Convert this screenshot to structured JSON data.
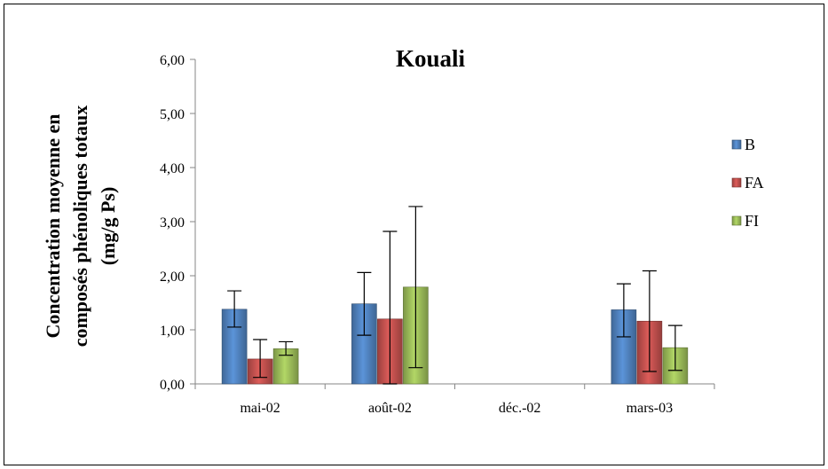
{
  "chart_data": {
    "type": "bar",
    "title": "Kouali",
    "xlabel": "",
    "ylabel": {
      "lines": [
        "Concentration moyenne en",
        "composés phénoliques totaux",
        "(mg/g Ps)"
      ]
    },
    "categories": [
      "mai-02",
      "août-02",
      "déc.-02",
      "mars-03"
    ],
    "ylim": [
      0,
      6
    ],
    "yticks": [
      "0,00",
      "1,00",
      "2,00",
      "3,00",
      "4,00",
      "5,00",
      "6,00"
    ],
    "ytick_values": [
      0,
      1,
      2,
      3,
      4,
      5,
      6
    ],
    "grid": false,
    "legend_position": "right",
    "series": [
      {
        "name": "B",
        "color": "#4F81BD",
        "values": [
          1.38,
          1.48,
          null,
          1.37
        ],
        "err_low": [
          1.05,
          0.9,
          null,
          0.87
        ],
        "err_high": [
          1.72,
          2.06,
          null,
          1.85
        ]
      },
      {
        "name": "FA",
        "color": "#C0504D",
        "values": [
          0.46,
          1.2,
          null,
          1.16
        ],
        "err_low": [
          0.12,
          0.0,
          null,
          0.23
        ],
        "err_high": [
          0.82,
          2.82,
          null,
          2.09
        ]
      },
      {
        "name": "FI",
        "color": "#9BBB59",
        "values": [
          0.65,
          1.79,
          null,
          0.67
        ],
        "err_low": [
          0.53,
          0.3,
          null,
          0.25
        ],
        "err_high": [
          0.78,
          3.28,
          null,
          1.08
        ]
      }
    ]
  }
}
